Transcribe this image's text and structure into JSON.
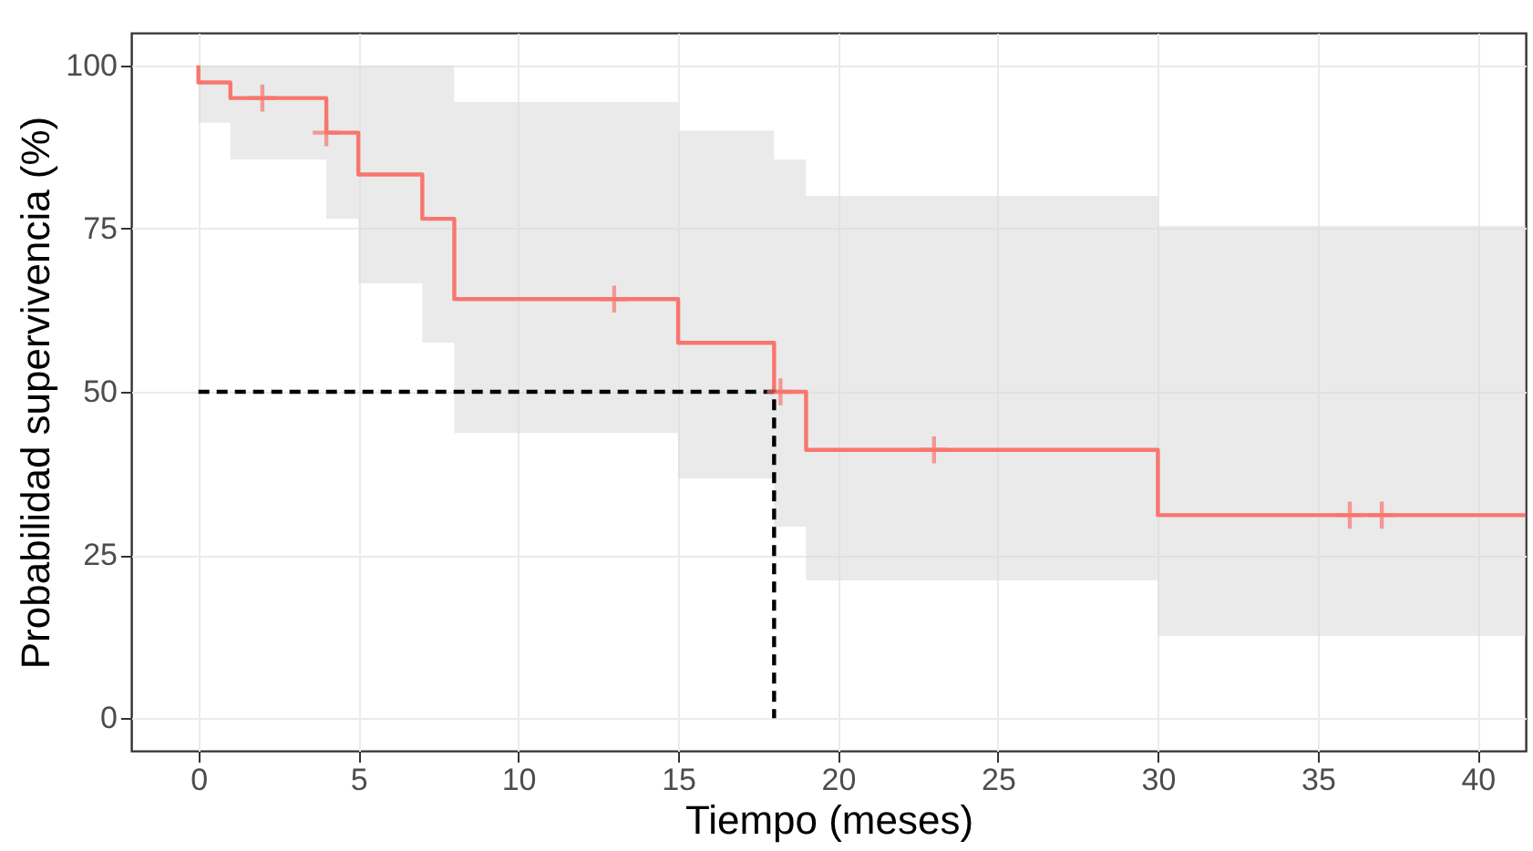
{
  "chart_data": {
    "type": "step",
    "xlabel": "Tiempo (meses)",
    "ylabel": "Probabilidad supervivencia (%)",
    "xlim": [
      -2.1,
      41.5
    ],
    "ylim": [
      -5,
      105
    ],
    "xticks": [
      0,
      5,
      10,
      15,
      20,
      25,
      30,
      35,
      40
    ],
    "yticks": [
      0,
      25,
      50,
      75,
      100
    ],
    "grid": true,
    "series": [
      {
        "color": "#f8766d",
        "x": [
          0,
          0,
          1,
          4,
          5,
          7,
          8,
          15,
          18,
          19,
          30,
          41.5
        ],
        "values": [
          100,
          97.4,
          95,
          89.7,
          83.3,
          76.5,
          64.2,
          57.5,
          50,
          41.1,
          31.1,
          31.1
        ],
        "lower": [
          91.2,
          91.2,
          85.6,
          76.5,
          66.6,
          57.5,
          43.7,
          36.7,
          29.3,
          21.1,
          12.6,
          12.6
        ],
        "upper": [
          100,
          100,
          100,
          100,
          100,
          100,
          94.4,
          90,
          85.6,
          80,
          75.4,
          75.4
        ]
      },
      {
        "type": "scatter",
        "color": "#f8766d",
        "marker": "cross",
        "x": [
          2,
          4,
          13,
          18.2,
          23,
          36,
          37
        ],
        "values": [
          95,
          89.7,
          64.2,
          50,
          41.1,
          31.1,
          31.1
        ]
      },
      {
        "type": "line",
        "color": "#000000",
        "line_style": "dashed",
        "x": [
          0,
          18,
          18
        ],
        "values": [
          50,
          50,
          0
        ]
      }
    ]
  }
}
